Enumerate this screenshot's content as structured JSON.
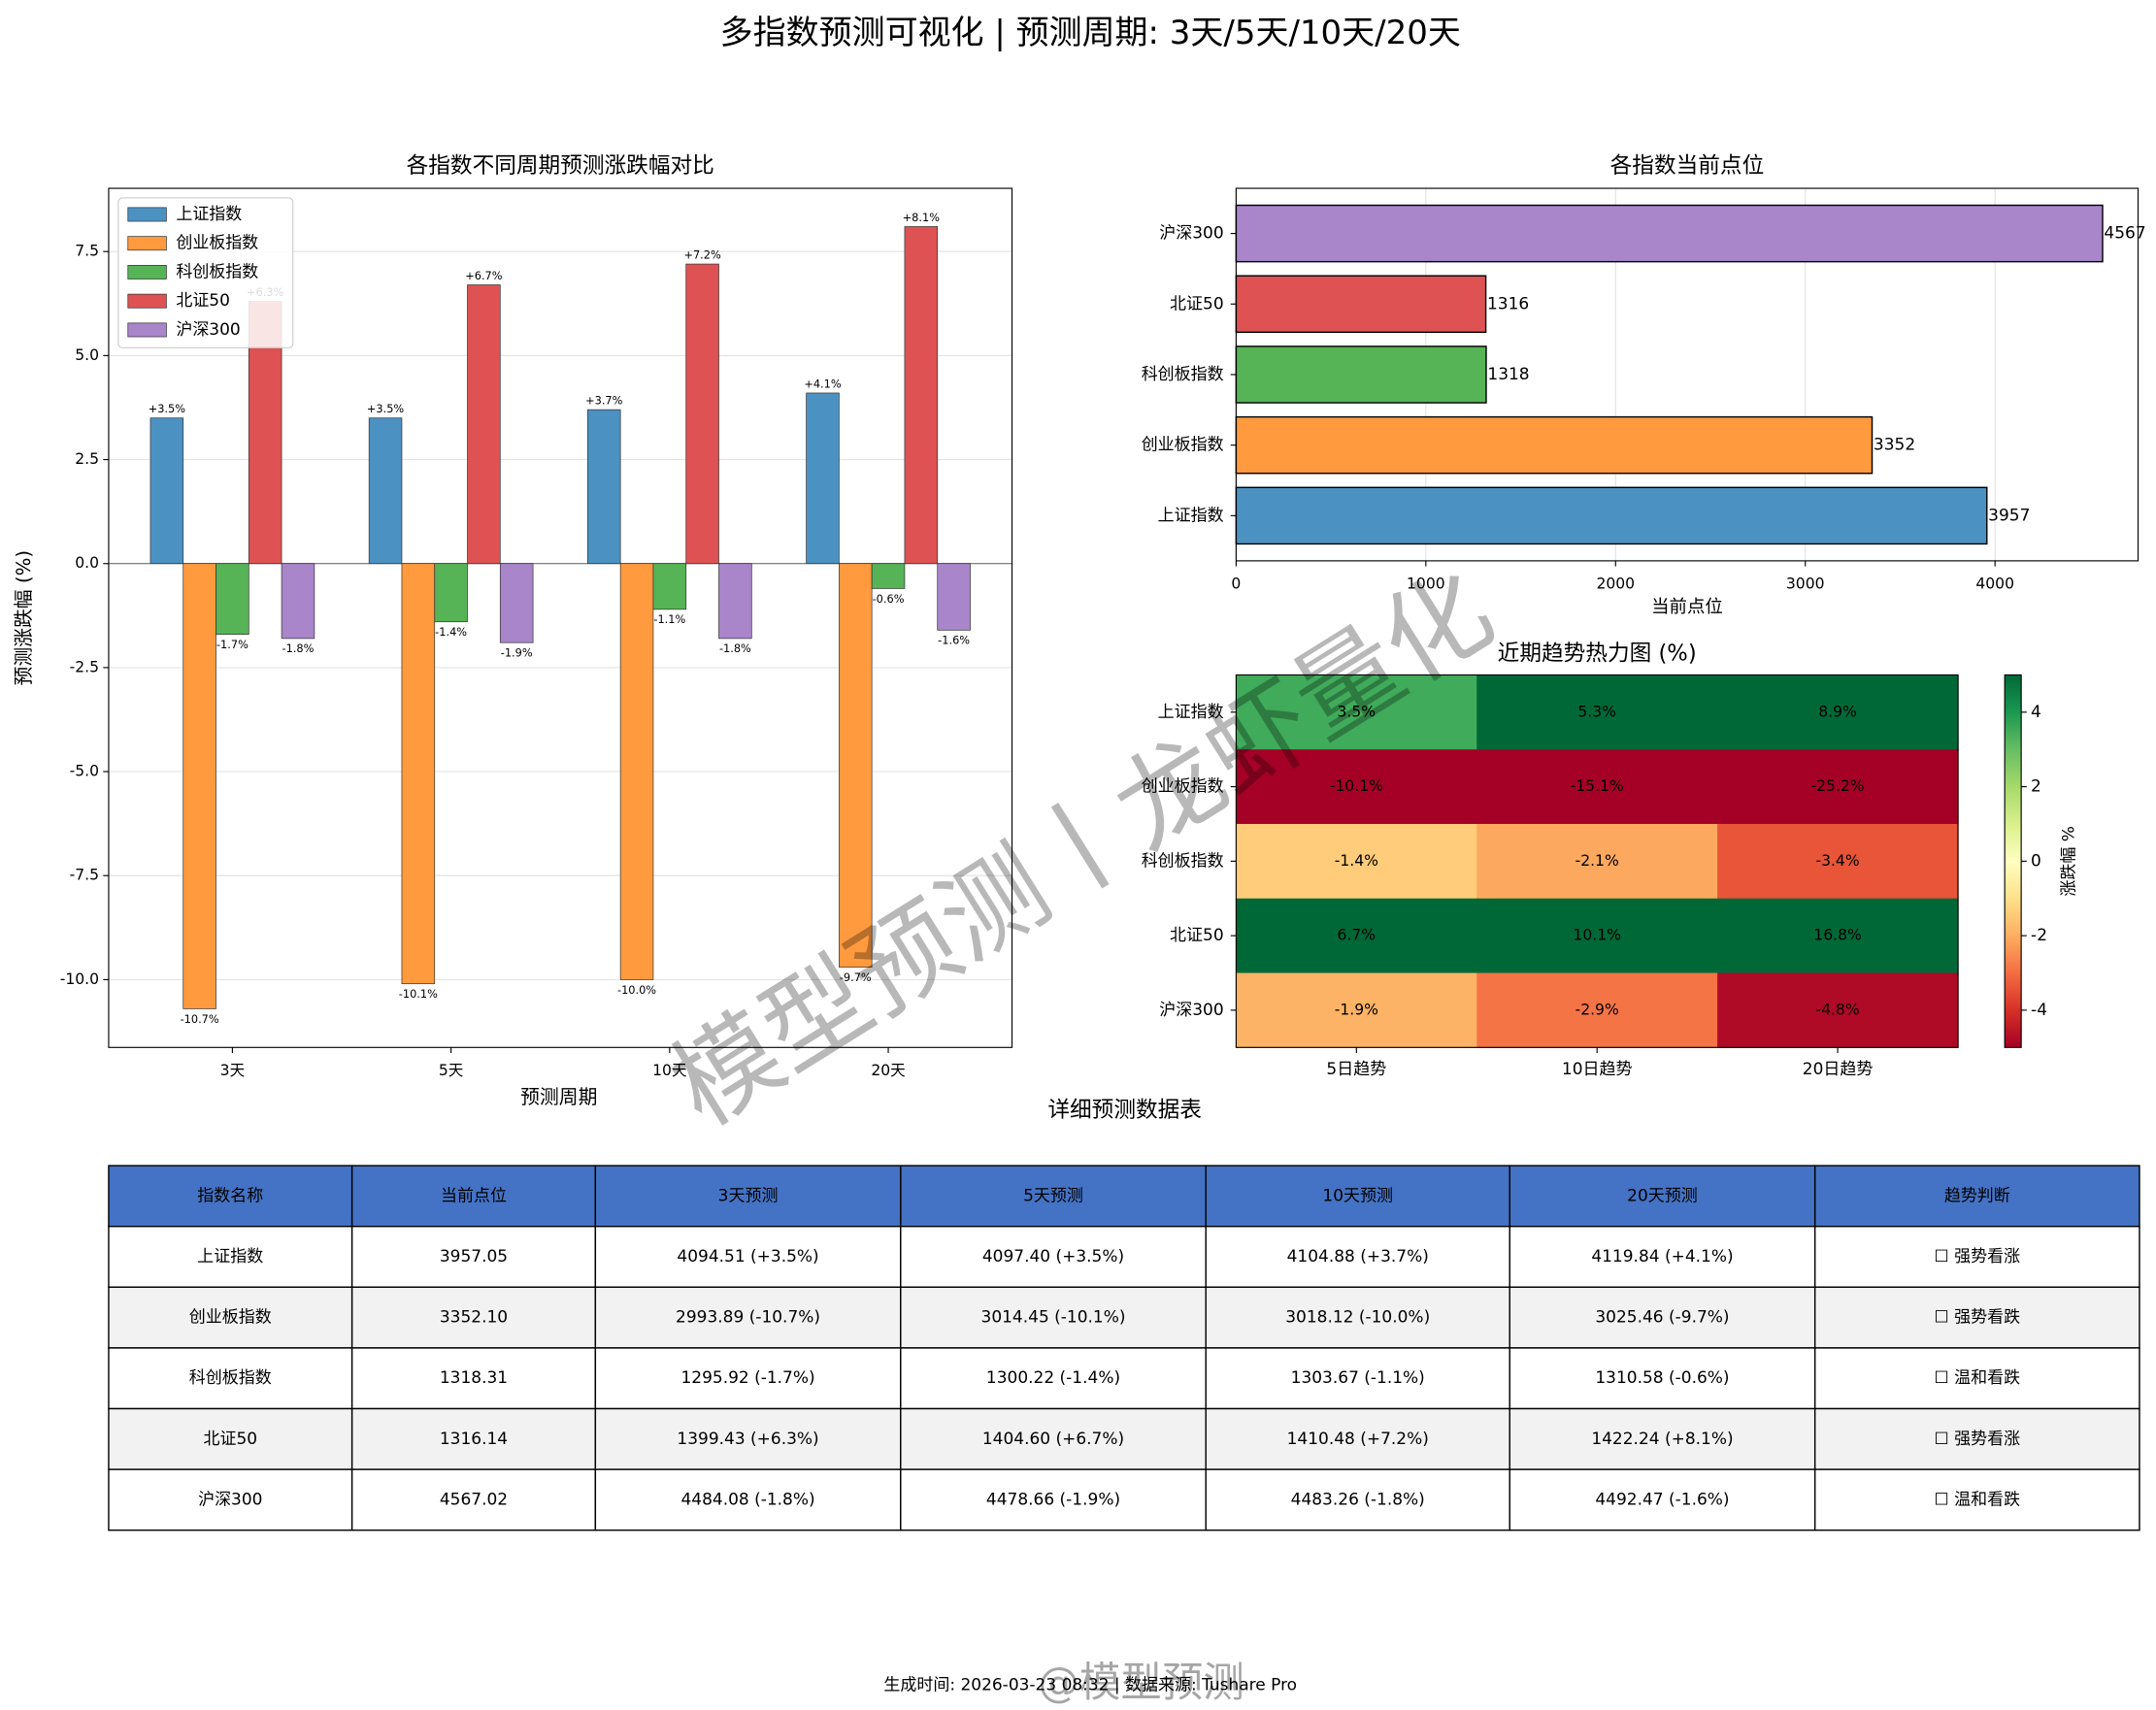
{
  "title": "多指数预测可视化 | 预测周期: 3天/5天/10天/20天",
  "chart_data": [
    {
      "type": "bar",
      "title": "各指数不同周期预测涨跌幅对比",
      "xlabel": "预测周期",
      "ylabel": "预测涨跌幅 (%)",
      "categories": [
        "3天",
        "5天",
        "10天",
        "20天"
      ],
      "series": [
        {
          "name": "上证指数",
          "color": "#4b92c3",
          "values": [
            3.5,
            3.5,
            3.7,
            4.1
          ],
          "value_labels": [
            "+3.5%",
            "+3.5%",
            "+3.7%",
            "+4.1%"
          ]
        },
        {
          "name": "创业板指数",
          "color": "#ff9a3e",
          "values": [
            -10.7,
            -10.1,
            -10.0,
            -9.7
          ],
          "value_labels": [
            "-10.7%",
            "-10.1%",
            "-10.0%",
            "-9.7%"
          ]
        },
        {
          "name": "科创板指数",
          "color": "#56b356",
          "values": [
            -1.7,
            -1.4,
            -1.1,
            -0.6
          ],
          "value_labels": [
            "-1.7%",
            "-1.4%",
            "-1.1%",
            "-0.6%"
          ]
        },
        {
          "name": "北证50",
          "color": "#de5253",
          "values": [
            6.3,
            6.7,
            7.2,
            8.1
          ],
          "value_labels": [
            "+6.3%",
            "+6.7%",
            "+7.2%",
            "+8.1%"
          ]
        },
        {
          "name": "沪深300",
          "color": "#a985ca",
          "values": [
            -1.8,
            -1.9,
            -1.8,
            -1.6
          ],
          "value_labels": [
            "-1.8%",
            "-1.9%",
            "-1.8%",
            "-1.6%"
          ]
        }
      ],
      "ylim": [
        -11.63,
        9.02
      ],
      "yticks": [
        {
          "value": -10,
          "label": "-10.0"
        },
        -7.5,
        {
          "value": -5,
          "label": "-5.0"
        },
        -2.5,
        {
          "value": 0,
          "label": "0.0"
        },
        2.5,
        {
          "value": 5,
          "label": "5.0"
        },
        7.5
      ],
      "grid": true,
      "legend": "upper left"
    },
    {
      "type": "barh",
      "title": "各指数当前点位",
      "xlabel": "当前点位",
      "categories": [
        "上证指数",
        "创业板指数",
        "科创板指数",
        "北证50",
        "沪深300"
      ],
      "values": [
        3957,
        3352,
        1318,
        1316,
        4567
      ],
      "colors": [
        "#4b92c3",
        "#ff9a3e",
        "#56b356",
        "#de5253",
        "#a985ca"
      ],
      "xlim": [
        0,
        4754
      ],
      "xticks": [
        0,
        1000,
        2000,
        3000,
        4000
      ],
      "grid": true
    },
    {
      "type": "heatmap",
      "title": "近期趋势热力图 (%)",
      "rows": [
        "上证指数",
        "创业板指数",
        "科创板指数",
        "北证50",
        "沪深300"
      ],
      "columns": [
        "5日趋势",
        "10日趋势",
        "20日趋势"
      ],
      "values": [
        [
          3.5,
          5.3,
          8.9
        ],
        [
          -10.1,
          -15.1,
          -25.2
        ],
        [
          -1.4,
          -2.1,
          -3.4
        ],
        [
          6.7,
          10.1,
          16.8
        ],
        [
          -1.9,
          -2.9,
          -4.8
        ]
      ],
      "value_labels": [
        [
          "3.5%",
          "5.3%",
          "8.9%"
        ],
        [
          "-10.1%",
          "-15.1%",
          "-25.2%"
        ],
        [
          "-1.4%",
          "-2.1%",
          "-3.4%"
        ],
        [
          "6.7%",
          "10.1%",
          "16.8%"
        ],
        [
          "-1.9%",
          "-2.9%",
          "-4.8%"
        ]
      ],
      "colormap": "RdYlGn",
      "clim": [
        -5,
        5
      ],
      "cticks": [
        -4,
        -2,
        0,
        2,
        4
      ],
      "colorbar_label": "涨跌幅 %"
    }
  ],
  "table": {
    "title": "详细预测数据表",
    "header": [
      "指数名称",
      "当前点位",
      "3天预测",
      "5天预测",
      "10天预测",
      "20天预测",
      "趋势判断"
    ],
    "rows": [
      [
        "上证指数",
        "3957.05",
        "4094.51 (+3.5%)",
        "4097.40 (+3.5%)",
        "4104.88 (+3.7%)",
        "4119.84 (+4.1%)",
        "☐ 强势看涨"
      ],
      [
        "创业板指数",
        "3352.10",
        "2993.89 (-10.7%)",
        "3014.45 (-10.1%)",
        "3018.12 (-10.0%)",
        "3025.46 (-9.7%)",
        "☐ 强势看跌"
      ],
      [
        "科创板指数",
        "1318.31",
        "1295.92 (-1.7%)",
        "1300.22 (-1.4%)",
        "1303.67 (-1.1%)",
        "1310.58 (-0.6%)",
        "☐ 温和看跌"
      ],
      [
        "北证50",
        "1316.14",
        "1399.43 (+6.3%)",
        "1404.60 (+6.7%)",
        "1410.48 (+7.2%)",
        "1422.24 (+8.1%)",
        "☐ 强势看涨"
      ],
      [
        "沪深300",
        "4567.02",
        "4484.08 (-1.8%)",
        "4478.66 (-1.9%)",
        "4483.26 (-1.8%)",
        "4492.47 (-1.6%)",
        "☐ 温和看跌"
      ]
    ]
  },
  "footer": "生成时间: 2026-03-23 08:32 | 数据来源: Tushare Pro",
  "watermarks": [
    "模型预测丨龙虾量化",
    "@模型预测"
  ]
}
